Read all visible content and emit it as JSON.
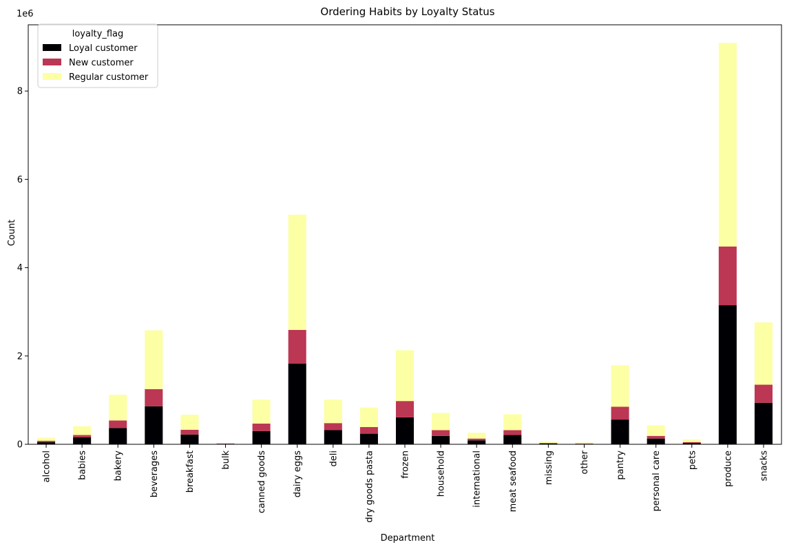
{
  "chart_data": {
    "type": "bar",
    "stacked": true,
    "title": "Ordering Habits by Loyalty Status",
    "xlabel": "Department",
    "ylabel": "Count",
    "y_scale_label": "1e6",
    "y_scale": 1000000,
    "ylim": [
      0,
      9.5
    ],
    "yticks": [
      0,
      2,
      4,
      6,
      8
    ],
    "grid": false,
    "legend": {
      "title": "loyalty_flag",
      "placement": "top-left"
    },
    "categories": [
      "alcohol",
      "babies",
      "bakery",
      "beverages",
      "breakfast",
      "bulk",
      "canned goods",
      "dairy eggs",
      "deli",
      "dry goods pasta",
      "frozen",
      "household",
      "international",
      "meat seafood",
      "missing",
      "other",
      "pantry",
      "personal care",
      "pets",
      "produce",
      "snacks"
    ],
    "series": [
      {
        "name": "Loyal customer",
        "color": "#000004",
        "values": [
          0.05,
          0.16,
          0.37,
          0.86,
          0.22,
          0.01,
          0.3,
          1.83,
          0.32,
          0.24,
          0.61,
          0.19,
          0.09,
          0.21,
          0.02,
          0.01,
          0.56,
          0.13,
          0.03,
          3.15,
          0.94
        ]
      },
      {
        "name": "New customer",
        "color": "#bc3754",
        "values": [
          0.03,
          0.05,
          0.17,
          0.39,
          0.11,
          0.01,
          0.17,
          0.76,
          0.16,
          0.15,
          0.37,
          0.13,
          0.04,
          0.11,
          0.01,
          0.01,
          0.29,
          0.06,
          0.02,
          1.33,
          0.41
        ]
      },
      {
        "name": "Regular customer",
        "color": "#fcffa4",
        "values": [
          0.07,
          0.2,
          0.58,
          1.33,
          0.34,
          0.01,
          0.54,
          2.61,
          0.53,
          0.44,
          1.15,
          0.39,
          0.13,
          0.36,
          0.03,
          0.02,
          0.94,
          0.24,
          0.06,
          4.61,
          1.41
        ]
      }
    ]
  }
}
